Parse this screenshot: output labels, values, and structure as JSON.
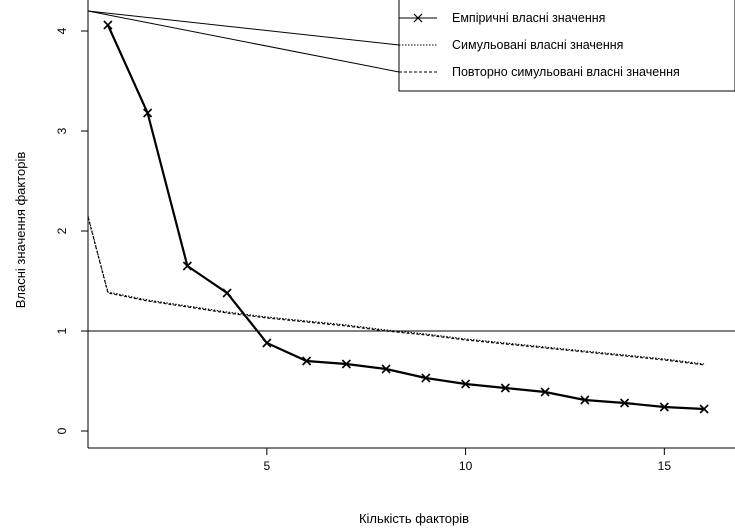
{
  "chart_data": {
    "type": "line",
    "title": "",
    "xlabel": "Кількість факторів",
    "ylabel": "Власні значення факторів",
    "xlim": [
      0.5,
      16.3
    ],
    "ylim": [
      0,
      4.25
    ],
    "x_ticks": [
      5,
      10,
      15
    ],
    "y_ticks": [
      0,
      1,
      2,
      3,
      4
    ],
    "x_tick_labels": [
      "5",
      "10",
      "15"
    ],
    "y_tick_labels": [
      "0",
      "1",
      "2",
      "3",
      "4"
    ],
    "reference_line_y": 1,
    "series": [
      {
        "name": "Емпіричні власні значення",
        "style": "solid-with-x-markers",
        "x": [
          1,
          2,
          3,
          4,
          5,
          6,
          7,
          8,
          9,
          10,
          11,
          12,
          13,
          14,
          15,
          16
        ],
        "y": [
          4.06,
          3.18,
          1.65,
          1.38,
          0.88,
          0.7,
          0.67,
          0.62,
          0.53,
          0.47,
          0.43,
          0.39,
          0.31,
          0.28,
          0.24,
          0.22
        ]
      },
      {
        "name": "Симульовані власні значення",
        "style": "dotted",
        "x": [
          0.5,
          1,
          2,
          3,
          4,
          5,
          6,
          7,
          8,
          9,
          10,
          11,
          12,
          13,
          14,
          15,
          16
        ],
        "y": [
          2.15,
          1.39,
          1.31,
          1.25,
          1.19,
          1.14,
          1.1,
          1.06,
          1.01,
          0.97,
          0.92,
          0.88,
          0.84,
          0.8,
          0.76,
          0.72,
          0.67
        ]
      },
      {
        "name": "Повторно симульовані власні значення",
        "style": "dashed",
        "x": [
          0.5,
          1,
          2,
          3,
          4,
          5,
          6,
          7,
          8,
          9,
          10,
          11,
          12,
          13,
          14,
          15,
          16
        ],
        "y": [
          2.14,
          1.38,
          1.3,
          1.24,
          1.18,
          1.13,
          1.09,
          1.05,
          1.0,
          0.96,
          0.91,
          0.87,
          0.83,
          0.79,
          0.75,
          0.71,
          0.66
        ]
      }
    ],
    "legend": {
      "placement": "top-right",
      "entries": [
        "Емпіричні власні значення",
        "Симульовані власні значення",
        "Повторно симульовані власні значення"
      ]
    }
  }
}
